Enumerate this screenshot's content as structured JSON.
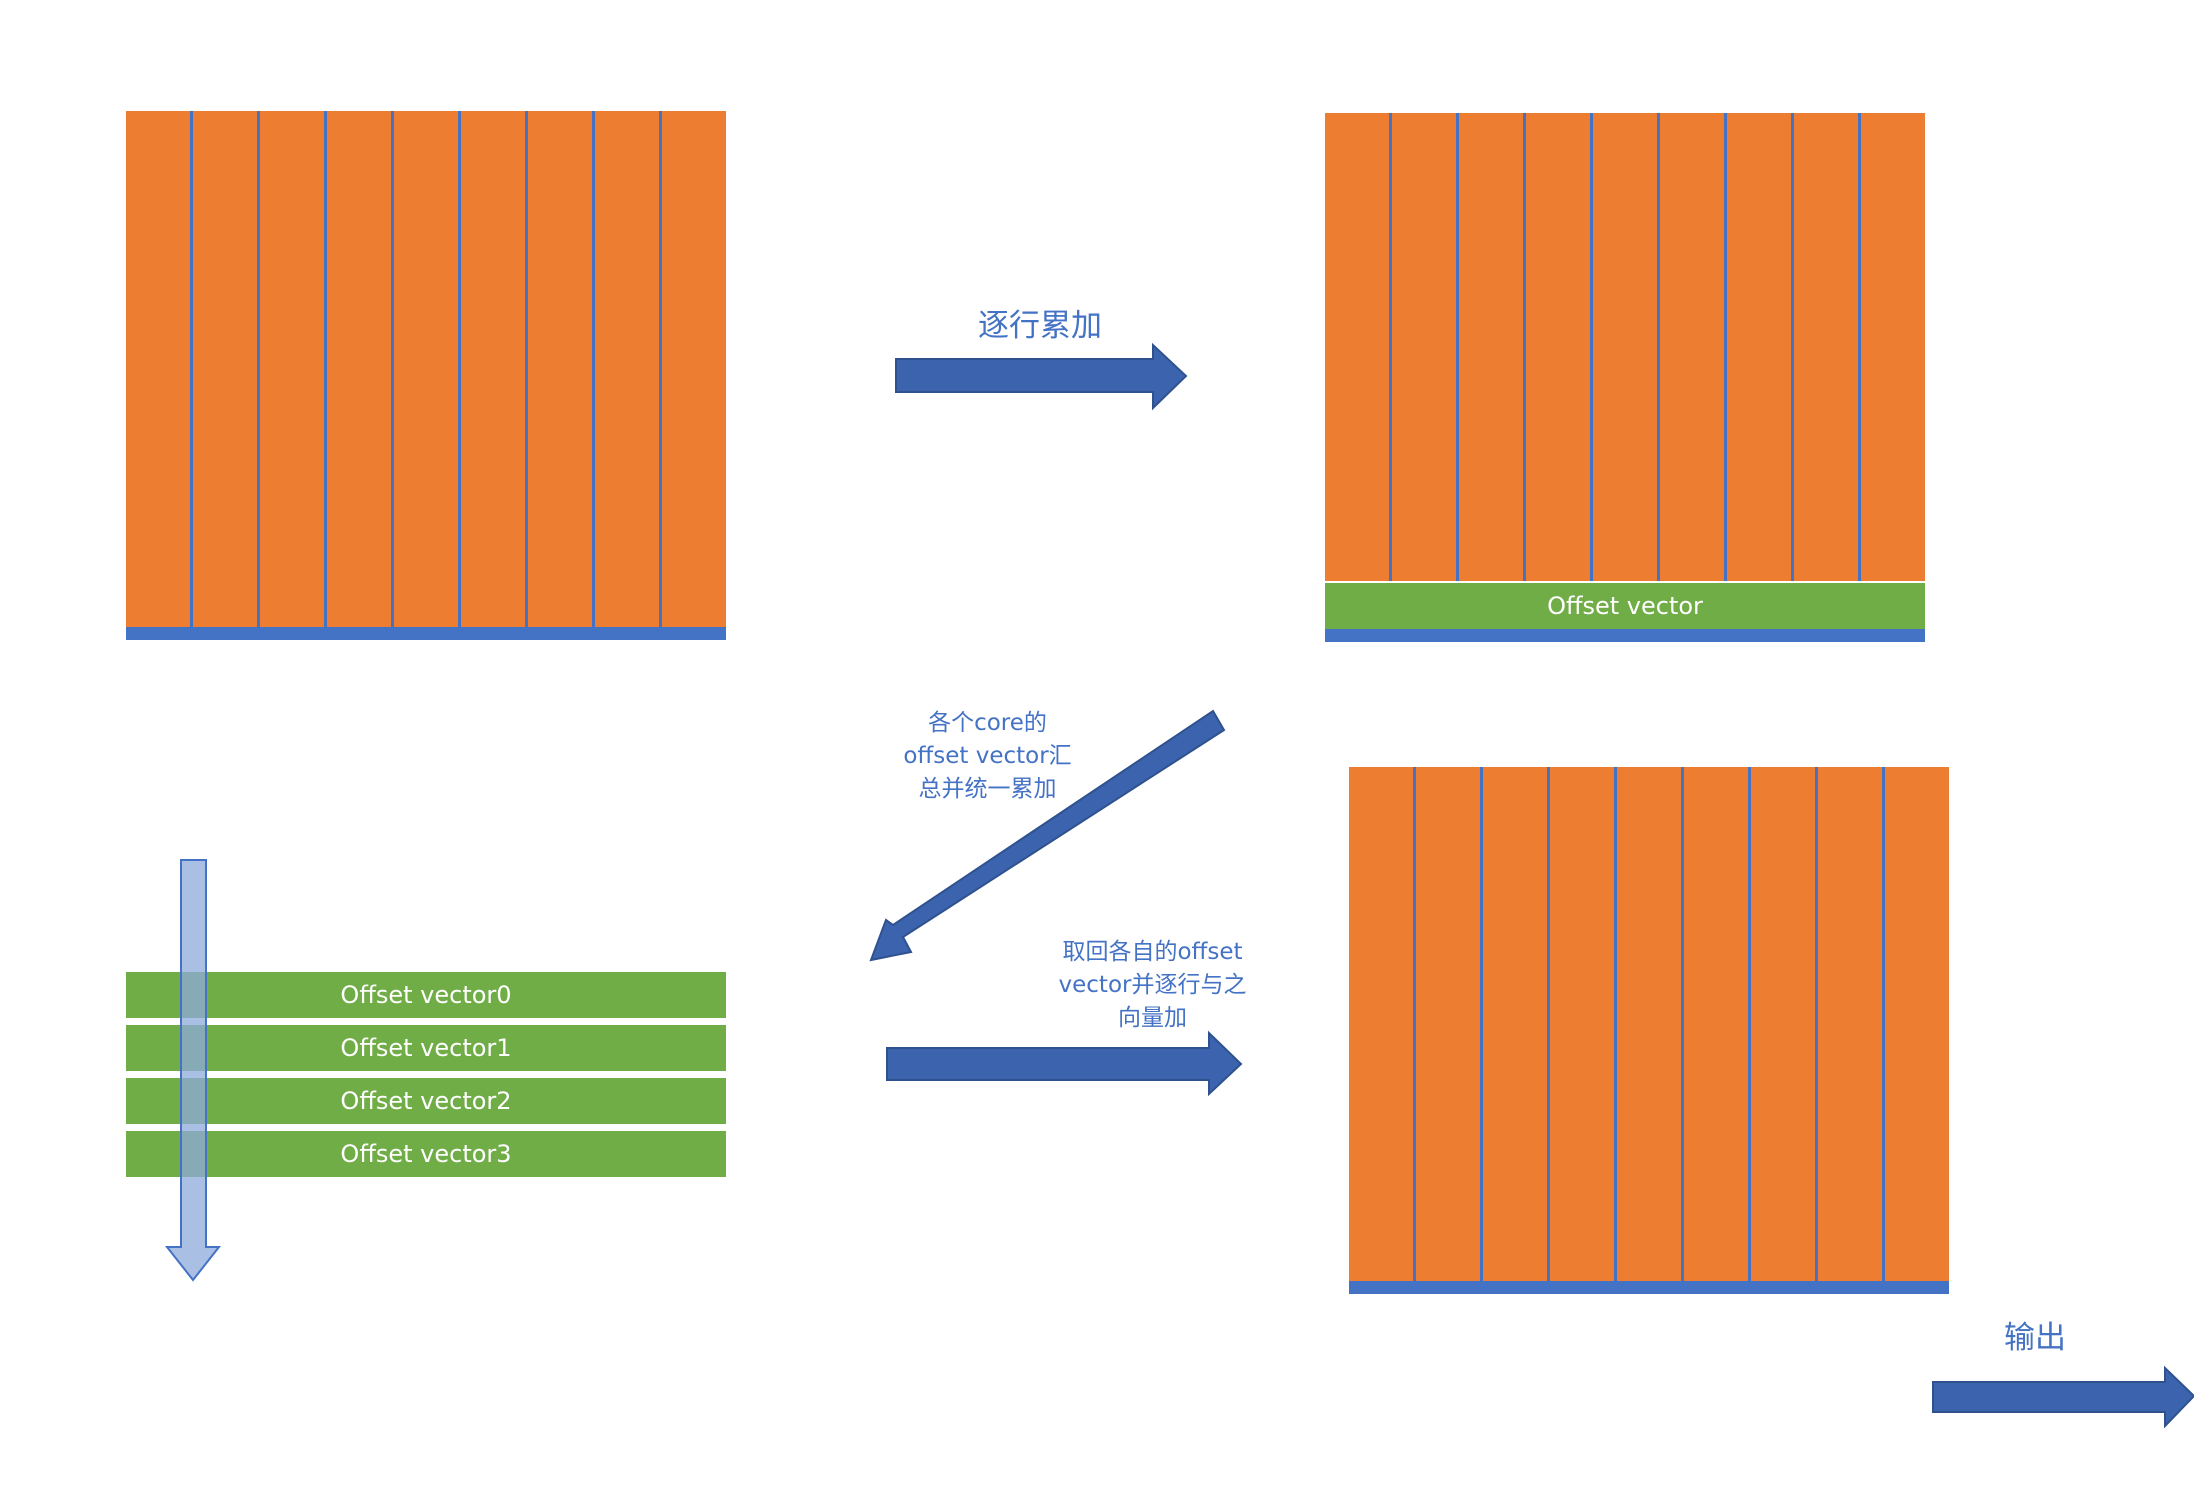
{
  "diagram": {
    "colors": {
      "column_fill": "#ED7D31",
      "column_border": "#4472C4",
      "offset_fill": "#70AD47",
      "arrow_fill": "#3C63AE",
      "label_text": "#4472C4",
      "down_arrow_fill": "#A9BDE0"
    },
    "matrix_columns": 9,
    "offset_vector_label": "Offset vector",
    "offset_vectors": [
      "Offset vector0",
      "Offset vector1",
      "Offset vector2",
      "Offset vector3"
    ],
    "arrows": {
      "row_accumulate": "逐行累加",
      "gather_line1": "各个core的",
      "gather_line2": "offset vector汇",
      "gather_line3": "总并统一累加",
      "fetch_line1": "取回各自的offset",
      "fetch_line2": "vector并逐行与之",
      "fetch_line3": "向量加",
      "output": "输出"
    }
  }
}
